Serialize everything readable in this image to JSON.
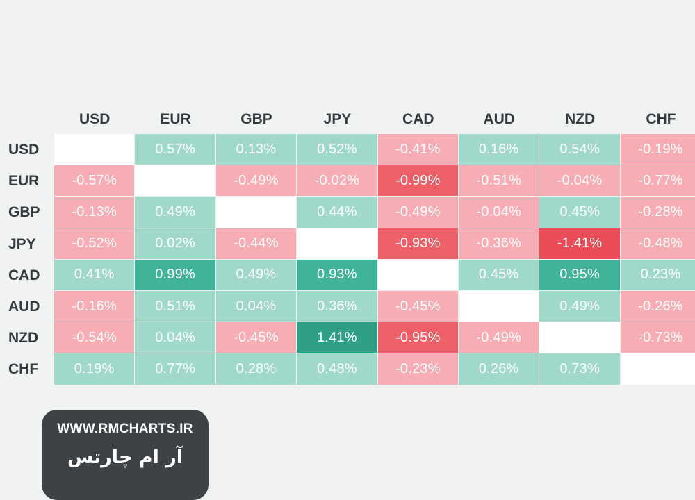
{
  "chart_data": {
    "type": "heatmap",
    "title": "",
    "unit": "%",
    "columns": [
      "USD",
      "EUR",
      "GBP",
      "JPY",
      "CAD",
      "AUD",
      "NZD",
      "CHF"
    ],
    "rows": [
      "USD",
      "EUR",
      "GBP",
      "JPY",
      "CAD",
      "AUD",
      "NZD",
      "CHF"
    ],
    "values": [
      [
        null,
        0.57,
        0.13,
        0.52,
        -0.41,
        0.16,
        0.54,
        -0.19
      ],
      [
        -0.57,
        null,
        -0.49,
        -0.02,
        -0.99,
        -0.51,
        -0.04,
        -0.77
      ],
      [
        -0.13,
        0.49,
        null,
        0.44,
        -0.49,
        -0.04,
        0.45,
        -0.28
      ],
      [
        -0.52,
        0.02,
        -0.44,
        null,
        -0.93,
        -0.36,
        -1.41,
        -0.48
      ],
      [
        0.41,
        0.99,
        0.49,
        0.93,
        null,
        0.45,
        0.95,
        0.23
      ],
      [
        -0.16,
        0.51,
        0.04,
        0.36,
        -0.45,
        null,
        0.49,
        -0.26
      ],
      [
        -0.54,
        0.04,
        -0.45,
        1.41,
        -0.95,
        -0.49,
        null,
        -0.73
      ],
      [
        0.19,
        0.77,
        0.28,
        0.48,
        -0.23,
        0.26,
        0.73,
        null
      ]
    ],
    "colors": {
      "positive_light": "#a0d9ca",
      "positive_mid": "#40b39b",
      "positive_dark": "#2e9f86",
      "negative_light": "#f8adb4",
      "negative_mid": "#ef5f67",
      "negative_dark": "#ea4d57",
      "empty": "#ffffff",
      "label": "#333a40",
      "background": "#f1f2f2"
    }
  },
  "branding": {
    "url": "WWW.RMCHARTS.IR",
    "name_fa": "آر ام چارتس"
  }
}
